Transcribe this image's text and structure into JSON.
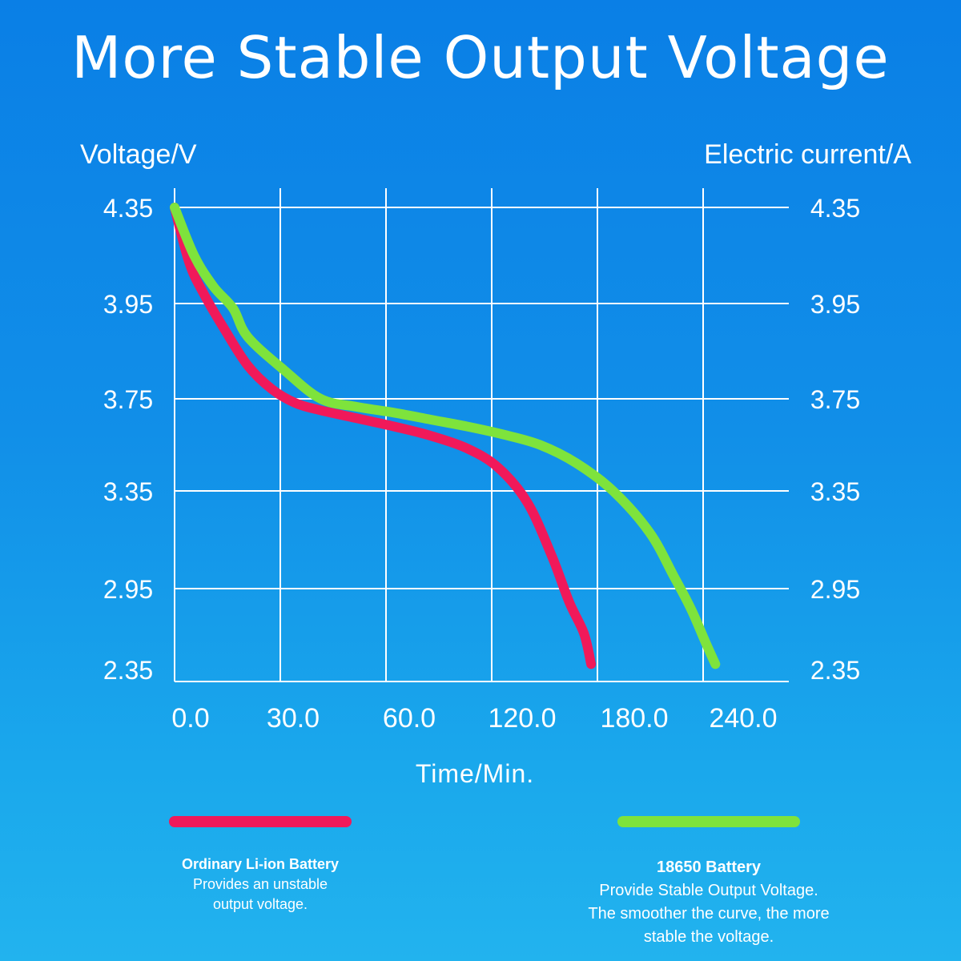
{
  "title": "More Stable Output Voltage",
  "chart_data": {
    "type": "line",
    "title": "More Stable Output Voltage",
    "ylabel": "Voltage/V",
    "ylabel_right": "Electric current/A",
    "xlabel": "Time/Min.",
    "x_ticks": [
      "0.0",
      "30.0",
      "60.0",
      "120.0",
      "180.0",
      "240.0"
    ],
    "y_ticks": [
      "4.35",
      "3.95",
      "3.75",
      "3.35",
      "2.95",
      "2.35"
    ],
    "y_ticks_right": [
      "4.35",
      "3.95",
      "3.75",
      "3.35",
      "2.95",
      "2.35"
    ],
    "grid": true,
    "series": [
      {
        "name": "Ordinary Li-ion Battery",
        "color": "#f0195a",
        "points": [
          [
            0,
            4.35
          ],
          [
            6,
            4.12
          ],
          [
            12,
            3.99
          ],
          [
            20,
            3.9
          ],
          [
            30,
            3.82
          ],
          [
            40,
            3.77
          ],
          [
            50,
            3.73
          ],
          [
            60,
            3.7
          ],
          [
            75,
            3.665
          ],
          [
            90,
            3.63
          ],
          [
            105,
            3.59
          ],
          [
            120,
            3.535
          ],
          [
            133,
            3.45
          ],
          [
            145,
            3.3
          ],
          [
            155,
            3.08
          ],
          [
            162,
            2.85
          ],
          [
            168,
            2.62
          ],
          [
            171,
            2.39
          ]
        ]
      },
      {
        "name": "18650 Battery",
        "color": "#7ee33c",
        "points": [
          [
            0,
            4.35
          ],
          [
            8,
            4.15
          ],
          [
            16,
            4.02
          ],
          [
            24,
            3.94
          ],
          [
            30,
            3.88
          ],
          [
            45,
            3.81
          ],
          [
            60,
            3.75
          ],
          [
            75,
            3.715
          ],
          [
            90,
            3.69
          ],
          [
            105,
            3.66
          ],
          [
            120,
            3.63
          ],
          [
            135,
            3.595
          ],
          [
            150,
            3.55
          ],
          [
            165,
            3.47
          ],
          [
            180,
            3.35
          ],
          [
            195,
            3.18
          ],
          [
            205,
            3.0
          ],
          [
            212,
            2.8
          ],
          [
            218,
            2.55
          ],
          [
            222,
            2.39
          ]
        ]
      }
    ]
  },
  "legend": {
    "left": {
      "name": "Ordinary Li-ion Battery",
      "lines": [
        "Provides an unstable",
        "output voltage."
      ],
      "color": "#f0195a"
    },
    "right": {
      "name": "18650 Battery",
      "lines": [
        "Provide Stable Output Voltage.",
        "The smoother the curve, the more",
        "stable the voltage."
      ],
      "color": "#7ee33c"
    }
  }
}
